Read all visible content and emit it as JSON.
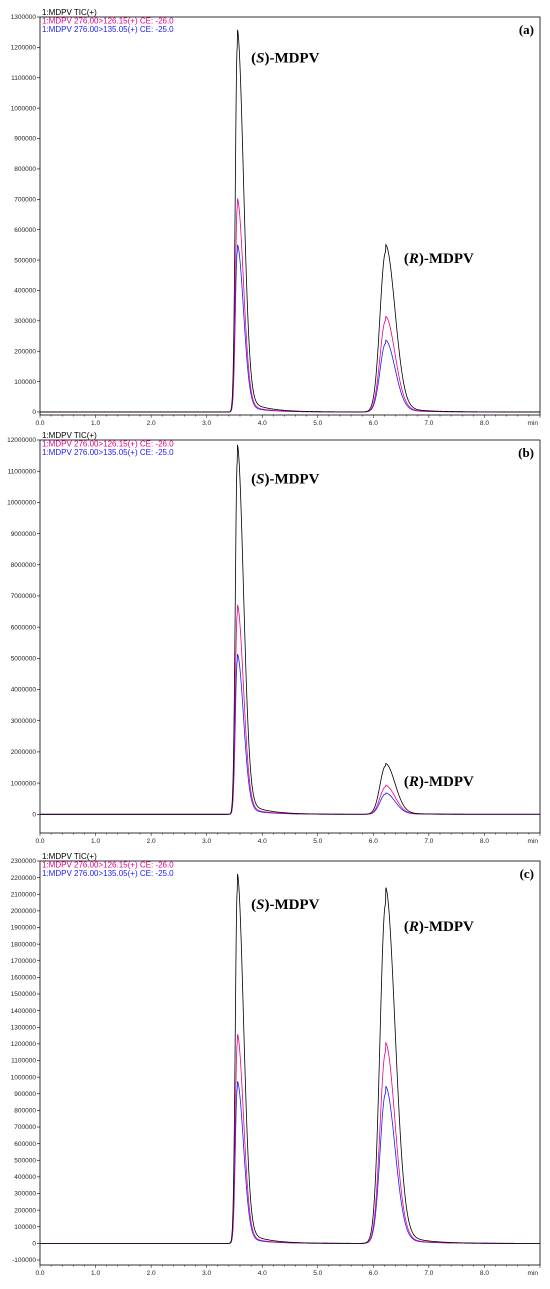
{
  "chart_data": [
    {
      "type": "line",
      "panel_label": "(a)",
      "xlabel": "min",
      "xlim": [
        0.0,
        9.0
      ],
      "ylim": [
        -10000,
        1300000
      ],
      "x_ticks": [
        "0.0",
        "1.0",
        "2.0",
        "3.0",
        "4.0",
        "5.0",
        "6.0",
        "7.0",
        "8.0"
      ],
      "y_ticks": [
        "0",
        "100000",
        "200000",
        "300000",
        "400000",
        "500000",
        "600000",
        "700000",
        "800000",
        "900000",
        "1000000",
        "1100000",
        "1200000",
        "1300000"
      ],
      "peaks": [
        {
          "name_prefix": "(",
          "name_italic": "S",
          "name_suffix": ")-MDPV",
          "rt": 3.55,
          "label_x": 3.8,
          "label_y": 1150000
        },
        {
          "name_prefix": "(",
          "name_italic": "R",
          "name_suffix": ")-MDPV",
          "rt": 6.22,
          "label_x": 6.55,
          "label_y": 490000
        }
      ],
      "series": [
        {
          "name": "1:MDPV TIC(+)",
          "color": "#000000",
          "heights": [
            1200000,
            525000
          ],
          "widths": [
            0.035,
            0.1
          ]
        },
        {
          "name": "1:MDPV 276.00>126.15(+) CE: -26.0",
          "color": "#e8008a",
          "heights": [
            670000,
            300000
          ],
          "widths": [
            0.035,
            0.1
          ]
        },
        {
          "name": "1:MDPV 276.00>135.05(+) CE: -25.0",
          "color": "#1a1aff",
          "heights": [
            525000,
            225000
          ],
          "widths": [
            0.035,
            0.1
          ]
        }
      ]
    },
    {
      "type": "line",
      "panel_label": "(b)",
      "xlabel": "min",
      "xlim": [
        0.0,
        9.0
      ],
      "ylim": [
        -600000,
        12000000
      ],
      "x_ticks": [
        "0.0",
        "1.0",
        "2.0",
        "3.0",
        "4.0",
        "5.0",
        "6.0",
        "7.0",
        "8.0"
      ],
      "y_ticks": [
        "0",
        "1000000",
        "2000000",
        "3000000",
        "4000000",
        "5000000",
        "6000000",
        "7000000",
        "8000000",
        "9000000",
        "10000000",
        "11000000",
        "12000000"
      ],
      "peaks": [
        {
          "name_prefix": "(",
          "name_italic": "S",
          "name_suffix": ")-MDPV",
          "rt": 3.55,
          "label_x": 3.8,
          "label_y": 10600000
        },
        {
          "name_prefix": "(",
          "name_italic": "R",
          "name_suffix": ")-MDPV",
          "rt": 6.22,
          "label_x": 6.55,
          "label_y": 900000
        }
      ],
      "series": [
        {
          "name": "1:MDPV TIC(+)",
          "color": "#000000",
          "heights": [
            11300000,
            1550000
          ],
          "widths": [
            0.035,
            0.1
          ]
        },
        {
          "name": "1:MDPV 276.00>126.15(+) CE: -26.0",
          "color": "#e8008a",
          "heights": [
            6400000,
            880000
          ],
          "widths": [
            0.035,
            0.1
          ]
        },
        {
          "name": "1:MDPV 276.00>135.05(+) CE: -25.0",
          "color": "#1a1aff",
          "heights": [
            4900000,
            650000
          ],
          "widths": [
            0.035,
            0.1
          ]
        }
      ]
    },
    {
      "type": "line",
      "panel_label": "(c)",
      "xlabel": "min",
      "xlim": [
        0.0,
        9.0
      ],
      "ylim": [
        -130000,
        2300000
      ],
      "x_ticks": [
        "0.0",
        "1.0",
        "2.0",
        "3.0",
        "4.0",
        "5.0",
        "6.0",
        "7.0",
        "8.0"
      ],
      "y_ticks": [
        "-100000",
        "0",
        "100000",
        "200000",
        "300000",
        "400000",
        "500000",
        "600000",
        "700000",
        "800000",
        "900000",
        "1000000",
        "1100000",
        "1200000",
        "1300000",
        "1400000",
        "1500000",
        "1600000",
        "1700000",
        "1800000",
        "1900000",
        "2000000",
        "2100000",
        "2200000",
        "2300000"
      ],
      "peaks": [
        {
          "name_prefix": "(",
          "name_italic": "S",
          "name_suffix": ")-MDPV",
          "rt": 3.55,
          "label_x": 3.8,
          "label_y": 2010000
        },
        {
          "name_prefix": "(",
          "name_italic": "R",
          "name_suffix": ")-MDPV",
          "rt": 6.22,
          "label_x": 6.55,
          "label_y": 1880000
        }
      ],
      "series": [
        {
          "name": "1:MDPV TIC(+)",
          "color": "#000000",
          "heights": [
            2120000,
            2040000
          ],
          "widths": [
            0.035,
            0.1
          ]
        },
        {
          "name": "1:MDPV 276.00>126.15(+) CE: -26.0",
          "color": "#e8008a",
          "heights": [
            1200000,
            1150000
          ],
          "widths": [
            0.035,
            0.1
          ]
        },
        {
          "name": "1:MDPV 276.00>135.05(+) CE: -25.0",
          "color": "#1a1aff",
          "heights": [
            930000,
            900000
          ],
          "widths": [
            0.035,
            0.1
          ]
        }
      ]
    }
  ]
}
